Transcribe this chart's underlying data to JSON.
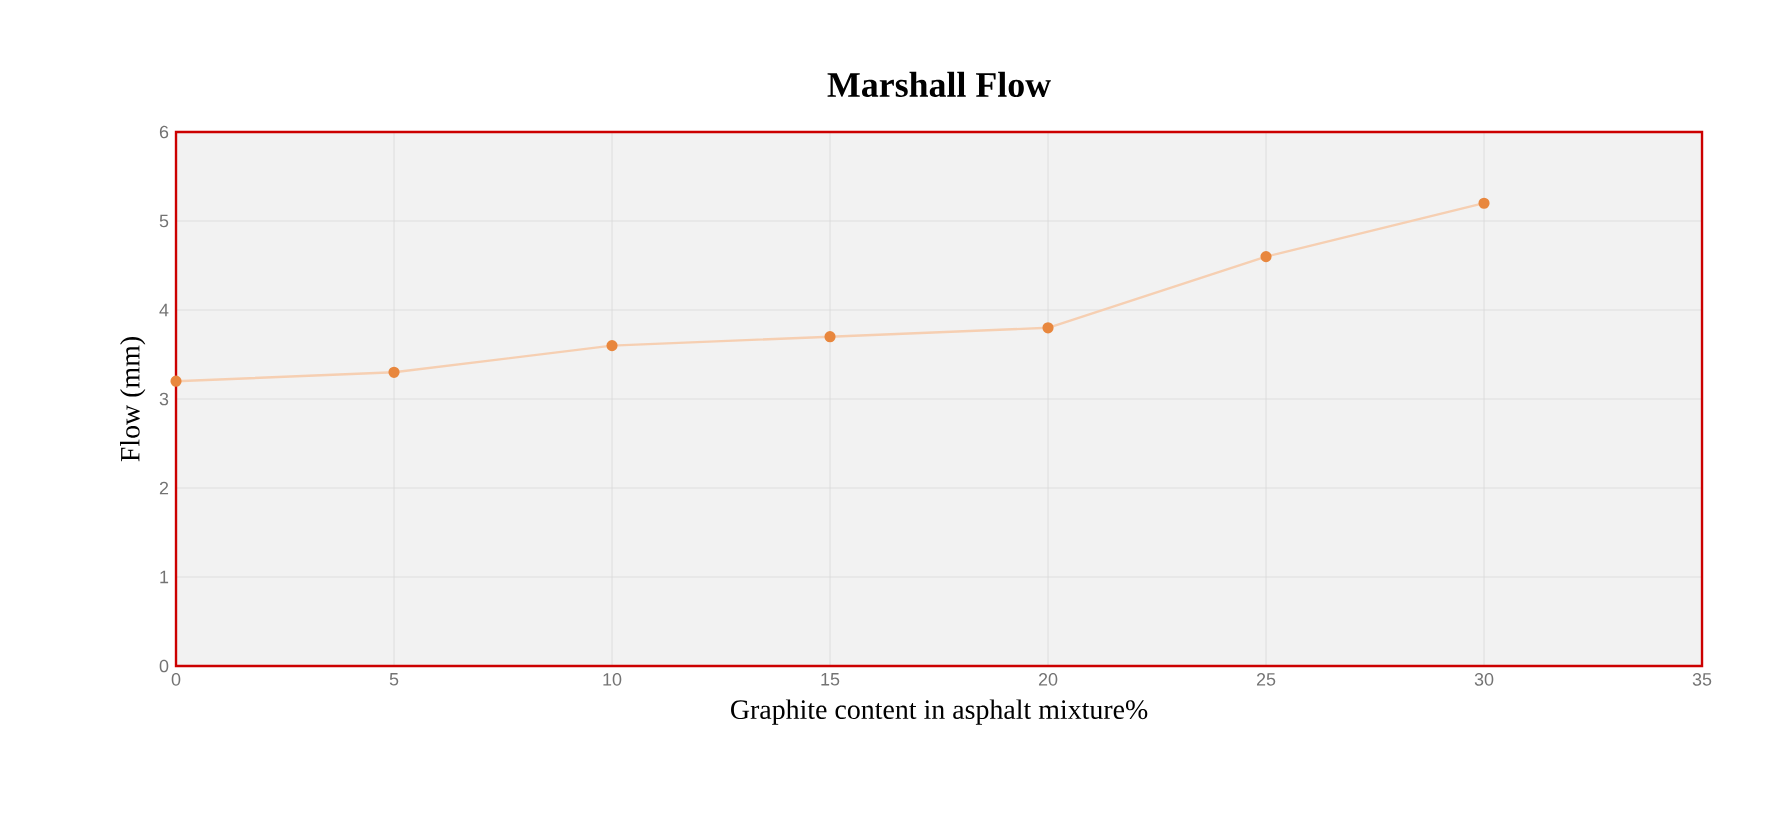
{
  "chart_data": {
    "type": "line",
    "title": "Marshall Flow",
    "xlabel": "Graphite content in asphalt mixture%",
    "ylabel": "Flow (mm)",
    "x": [
      0,
      5,
      10,
      15,
      20,
      25,
      30
    ],
    "series": [
      {
        "color": "#e8873e",
        "values": [
          3.2,
          3.3,
          3.6,
          3.7,
          3.8,
          4.6,
          5.2
        ]
      }
    ],
    "xlim": [
      0,
      35
    ],
    "xticks": [
      0,
      5,
      10,
      15,
      20,
      25,
      30,
      35
    ],
    "ylim": [
      0,
      6
    ],
    "yticks": [
      0,
      1,
      2,
      3,
      4,
      5,
      6
    ],
    "grid": true,
    "marker": "circle",
    "line_style": "solid"
  }
}
